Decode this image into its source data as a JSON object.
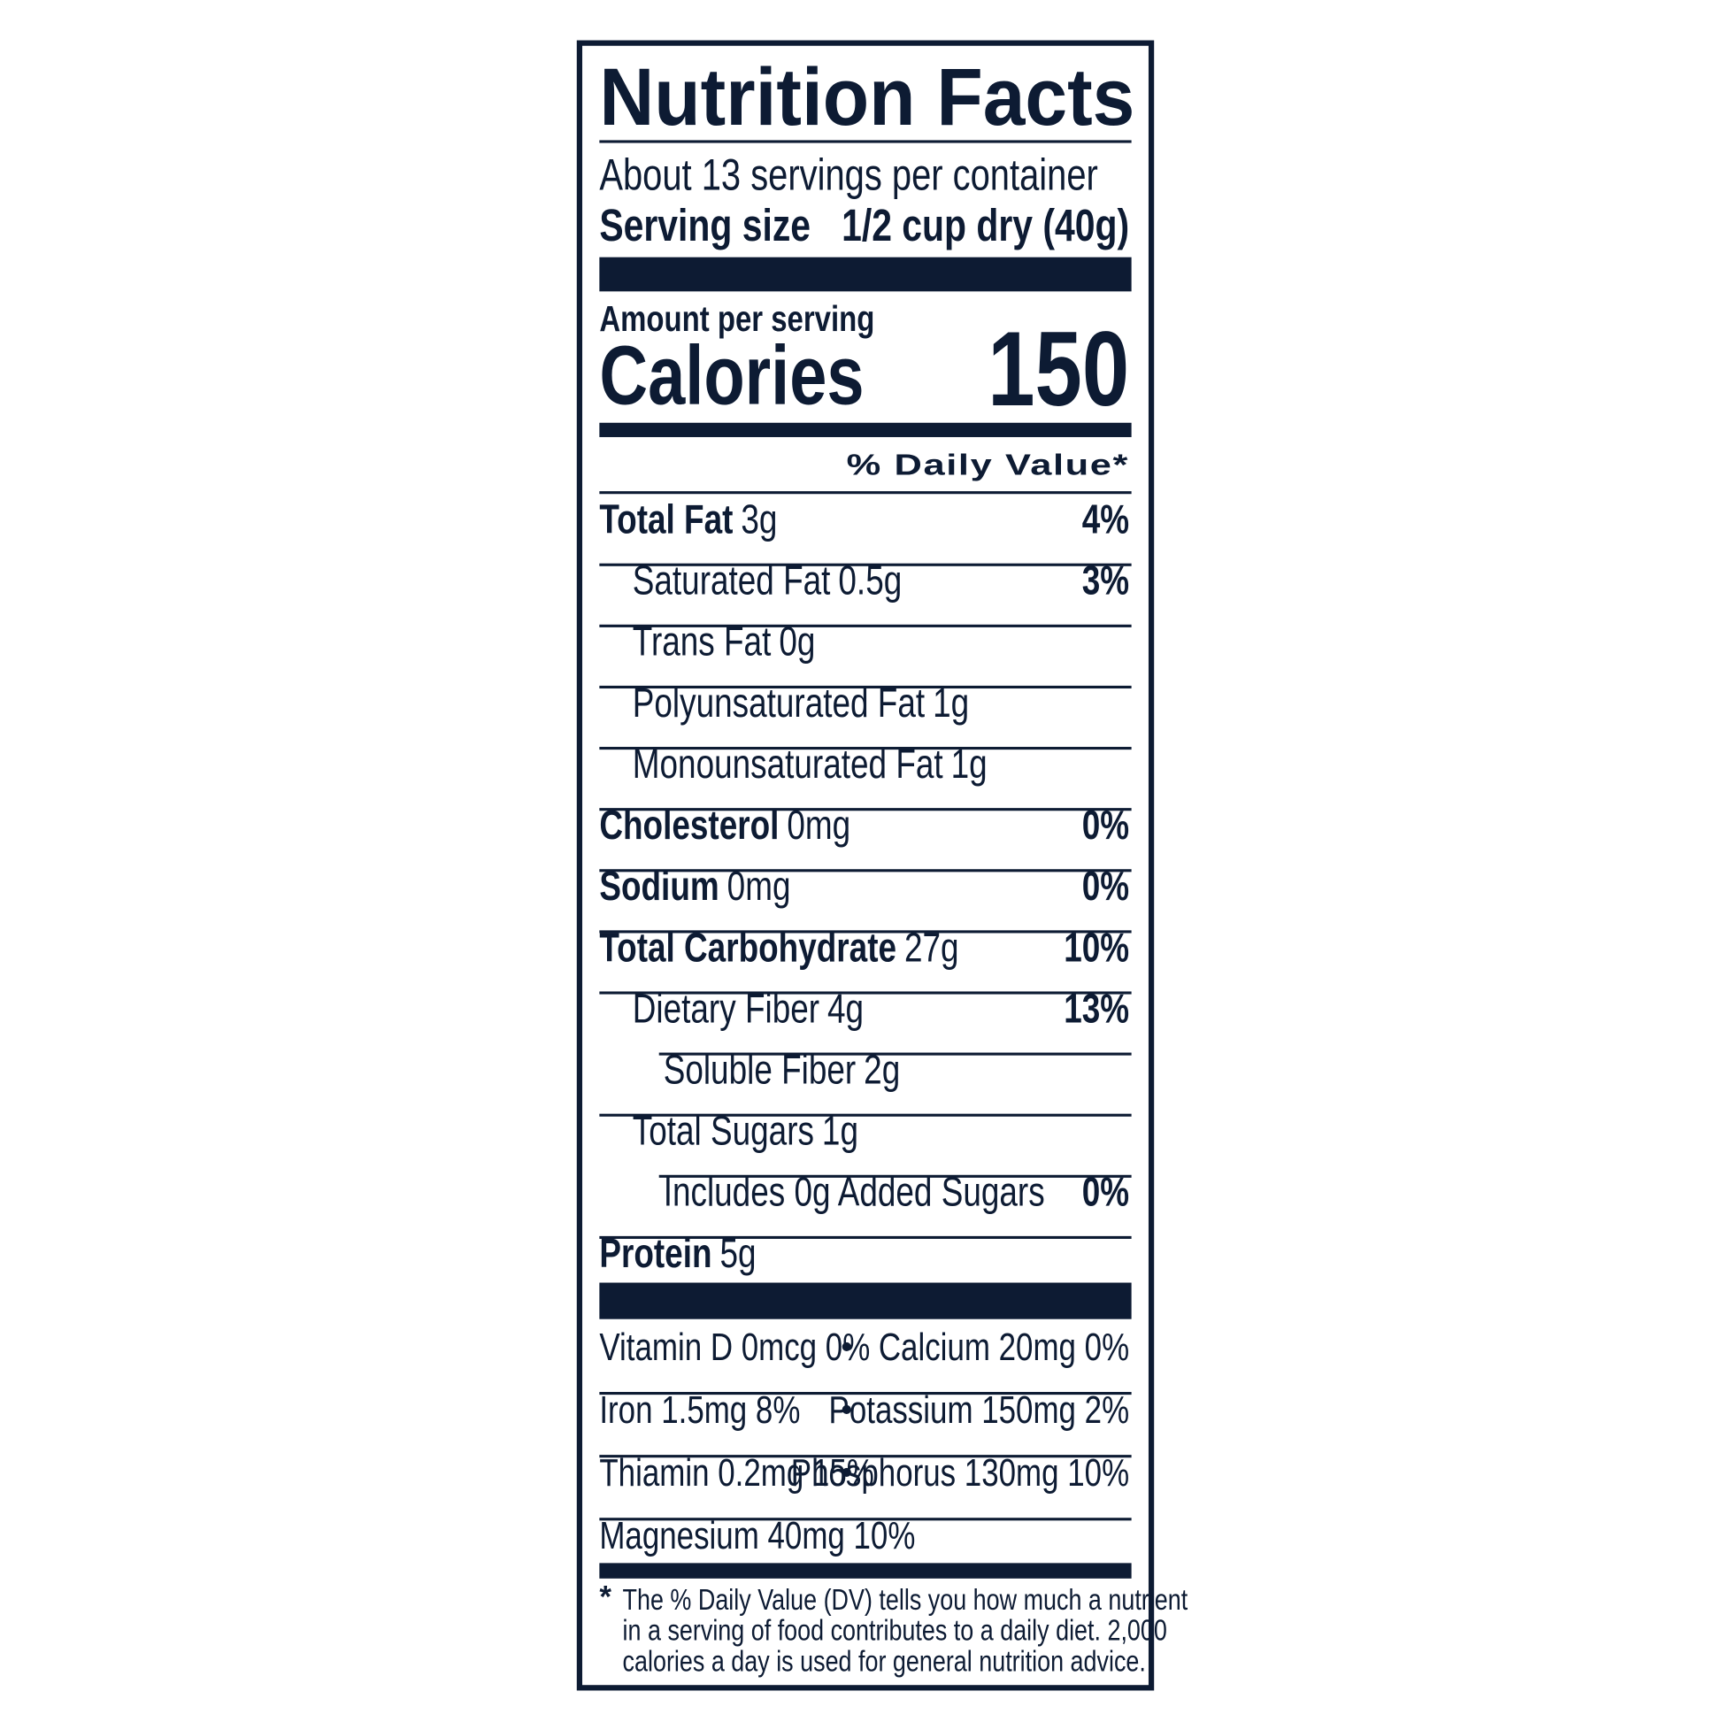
{
  "header": {
    "title": "Nutrition Facts",
    "servings": "About 13 servings per container",
    "serving_size_label": "Serving size",
    "serving_size_value": "1/2 cup dry (40g)"
  },
  "calories": {
    "amount_label": "Amount per serving",
    "label": "Calories",
    "value": 150
  },
  "daily_value_header": "% Daily Value*",
  "nutrients": [
    {
      "name": "Total Fat",
      "amount": "3g",
      "dv": "4%",
      "sub": [
        {
          "name": "Saturated Fat",
          "amount": "0.5g",
          "dv": "3%"
        },
        {
          "name": "Trans Fat",
          "amount": "0g"
        },
        {
          "name": "Polyunsaturated Fat",
          "amount": "1g"
        },
        {
          "name": "Monounsaturated Fat",
          "amount": "1g"
        }
      ]
    },
    {
      "name": "Cholesterol",
      "amount": "0mg",
      "dv": "0%"
    },
    {
      "name": "Sodium",
      "amount": "0mg",
      "dv": "0%"
    },
    {
      "name": "Total Carbohydrate",
      "amount": "27g",
      "dv": "10%",
      "sub": [
        {
          "name": "Dietary Fiber",
          "amount": "4g",
          "dv": "13%",
          "sub": [
            {
              "name": "Soluble Fiber",
              "amount": "2g"
            }
          ]
        },
        {
          "name": "Total Sugars",
          "amount": "1g",
          "sub": [
            {
              "name": "Includes 0g Added Sugars",
              "dv": "0%"
            }
          ]
        }
      ]
    },
    {
      "name": "Protein",
      "amount": "5g"
    }
  ],
  "vitamins": {
    "bullet": "•",
    "rows": [
      {
        "left": "Vitamin D 0mcg 0%",
        "right": "Calcium 20mg 0%"
      },
      {
        "left": "Iron 1.5mg 8%",
        "right": "Potassium 150mg 2%"
      },
      {
        "left": "Thiamin 0.2mg 15%",
        "right": "Phosphorus 130mg 10%"
      },
      {
        "left": "Magnesium 40mg 10%"
      }
    ]
  },
  "footnote": {
    "marker": "*",
    "lines": [
      "The % Daily Value (DV) tells you how much a nutrient",
      "in a serving of food contributes to a daily diet. 2,000",
      "calories a day is used for general nutrition advice."
    ]
  }
}
